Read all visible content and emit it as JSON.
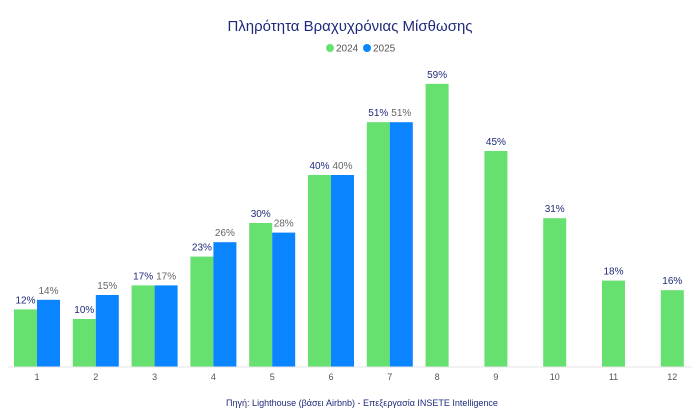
{
  "chart_data": {
    "type": "bar",
    "title": "Πληρότητα Βραχυχρόνιας Μίσθωσης",
    "categories": [
      "1",
      "2",
      "3",
      "4",
      "5",
      "6",
      "7",
      "8",
      "9",
      "10",
      "11",
      "12"
    ],
    "series": [
      {
        "name": "2024",
        "color": "#66e06e",
        "values": [
          12,
          10,
          17,
          23,
          30,
          40,
          51,
          59,
          45,
          31,
          18,
          16
        ],
        "labels": [
          "12%",
          "10%",
          "17%",
          "23%",
          "30%",
          "40%",
          "51%",
          "59%",
          "45%",
          "31%",
          "18%",
          "16%"
        ]
      },
      {
        "name": "2025",
        "color": "#0a84ff",
        "values": [
          14,
          15,
          17,
          26,
          28,
          40,
          51,
          null,
          null,
          null,
          null,
          null
        ],
        "labels": [
          "14%",
          "15%",
          "17%",
          "26%",
          "28%",
          "40%",
          "51%",
          null,
          null,
          null,
          null,
          null
        ]
      }
    ],
    "ylim": [
      0,
      60
    ],
    "grid": false,
    "legend": "top-center",
    "source": "Πηγή: Lighthouse (βάσει Airbnb) - Επεξεργασία INSETE Intelligence"
  }
}
